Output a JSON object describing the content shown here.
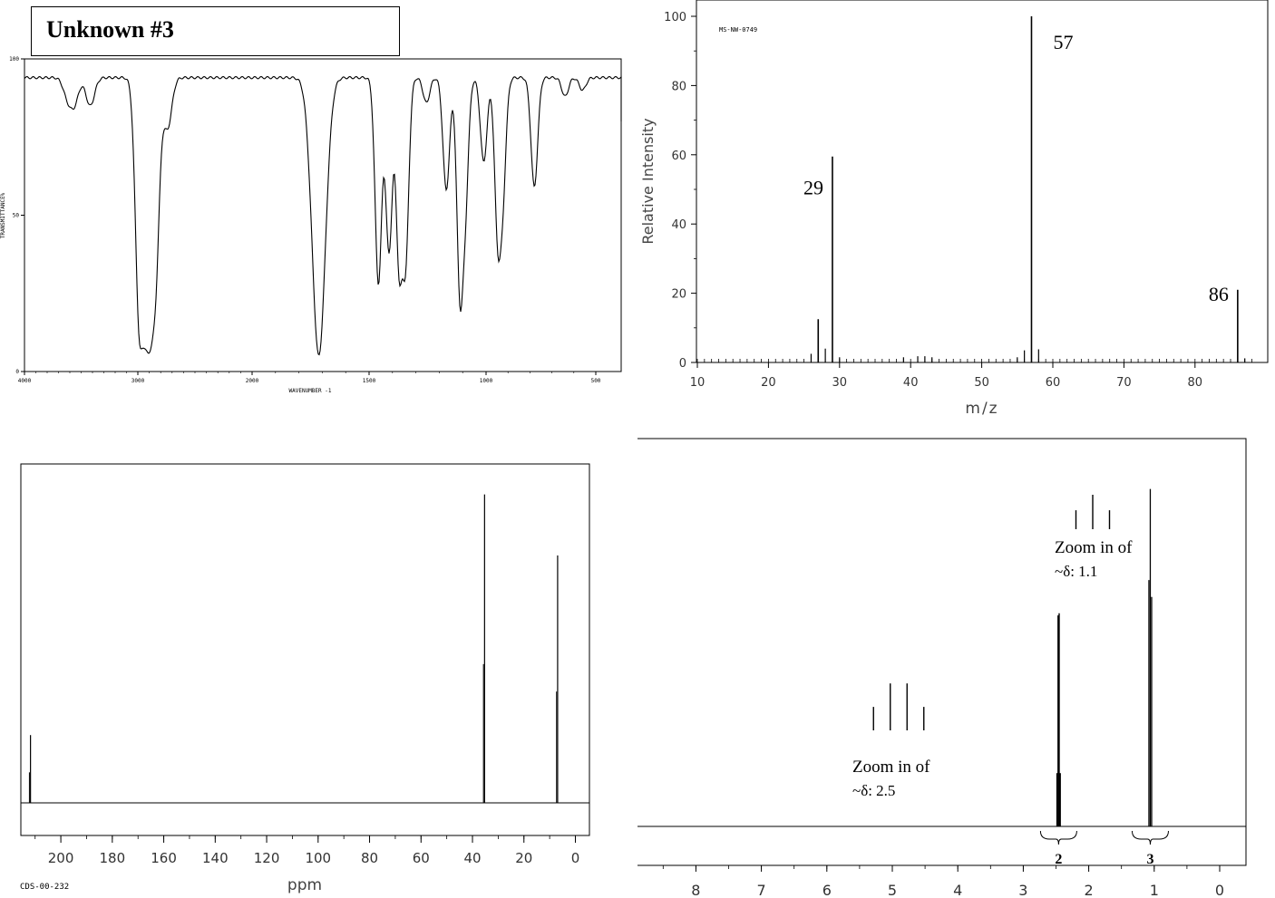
{
  "title": "Unknown #3",
  "colors": {
    "line": "#000000",
    "background": "#ffffff"
  },
  "chart_data": [
    {
      "id": "ir",
      "type": "line",
      "title": "",
      "xlabel": "WAVENUMBER -1",
      "ylabel": "TRANSMITTANCE%",
      "xlim": [
        4000,
        450
      ],
      "ylim": [
        0,
        100
      ],
      "x_ticks": [
        "4000",
        "3000",
        "2000",
        "1500",
        "1000",
        "500"
      ],
      "y_ticks": [
        "100",
        "50",
        "0"
      ],
      "baseline": 94,
      "bands": [
        {
          "x": 3620,
          "y": 88
        },
        {
          "x": 3560,
          "y": 86
        },
        {
          "x": 3420,
          "y": 85
        },
        {
          "x": 2980,
          "y": 14
        },
        {
          "x": 2945,
          "y": 39
        },
        {
          "x": 2910,
          "y": 22
        },
        {
          "x": 2880,
          "y": 38
        },
        {
          "x": 2850,
          "y": 41
        },
        {
          "x": 2740,
          "y": 78
        },
        {
          "x": 1715,
          "y": 5
        },
        {
          "x": 1460,
          "y": 28
        },
        {
          "x": 1415,
          "y": 38
        },
        {
          "x": 1370,
          "y": 32
        },
        {
          "x": 1345,
          "y": 35
        },
        {
          "x": 1255,
          "y": 86
        },
        {
          "x": 1170,
          "y": 58
        },
        {
          "x": 1110,
          "y": 23
        },
        {
          "x": 1090,
          "y": 57
        },
        {
          "x": 1010,
          "y": 67
        },
        {
          "x": 945,
          "y": 43
        },
        {
          "x": 925,
          "y": 60
        },
        {
          "x": 780,
          "y": 59
        },
        {
          "x": 640,
          "y": 88
        },
        {
          "x": 560,
          "y": 90
        }
      ]
    },
    {
      "id": "ms",
      "type": "bar",
      "title": "",
      "annotation": "MS-NW-0749",
      "xlabel": "m/z",
      "ylabel": "Relative Intensity",
      "xlim": [
        10,
        88
      ],
      "ylim": [
        0,
        100
      ],
      "x_ticks": [
        "10",
        "20",
        "30",
        "40",
        "50",
        "60",
        "70",
        "80"
      ],
      "y_ticks": [
        "0",
        "20",
        "40",
        "60",
        "80",
        "100"
      ],
      "peaks": [
        {
          "x": 26,
          "y": 2.5
        },
        {
          "x": 27,
          "y": 12.5
        },
        {
          "x": 28,
          "y": 4
        },
        {
          "x": 29,
          "y": 59.5
        },
        {
          "x": 30,
          "y": 1.5
        },
        {
          "x": 39,
          "y": 1.5
        },
        {
          "x": 41,
          "y": 1.8
        },
        {
          "x": 42,
          "y": 1.8
        },
        {
          "x": 43,
          "y": 1.5
        },
        {
          "x": 55,
          "y": 1.5
        },
        {
          "x": 56,
          "y": 3.5
        },
        {
          "x": 57,
          "y": 100
        },
        {
          "x": 58,
          "y": 3.8
        },
        {
          "x": 86,
          "y": 21
        },
        {
          "x": 87,
          "y": 1.2
        }
      ],
      "labels": [
        {
          "text": "29",
          "x": 29
        },
        {
          "text": "57",
          "x": 57
        },
        {
          "text": "86",
          "x": 86
        }
      ]
    },
    {
      "id": "c13",
      "type": "bar",
      "title": "",
      "annotation": "CDS-00-232",
      "xlabel": "ppm",
      "xlim": [
        220,
        -5
      ],
      "x_ticks": [
        "200",
        "180",
        "160",
        "140",
        "120",
        "100",
        "80",
        "60",
        "40",
        "20",
        "0"
      ],
      "peaks": [
        {
          "x": 211.8,
          "y": 0.2
        },
        {
          "x": 35.3,
          "y": 0.91
        },
        {
          "x": 6.9,
          "y": 0.73
        }
      ]
    },
    {
      "id": "h1",
      "type": "bar",
      "title": "",
      "xlabel": "",
      "xlim": [
        8.9,
        -0.4
      ],
      "x_ticks": [
        "8",
        "7",
        "6",
        "5",
        "4",
        "3",
        "2",
        "1",
        "0"
      ],
      "peaks": [
        {
          "x": 2.46,
          "y": 0.6
        },
        {
          "x": 1.06,
          "y": 0.95
        }
      ],
      "integrations": [
        {
          "text": "2",
          "x": 2.46
        },
        {
          "text": "3",
          "x": 1.06
        }
      ],
      "zooms": [
        {
          "line1": "Zoom in of",
          "line2": "~δ: 2.5",
          "heights": [
            0.35,
            0.7,
            0.7,
            0.35
          ]
        },
        {
          "line1": "Zoom in of",
          "line2": "~δ: 1.1",
          "heights": [
            0.55,
            1.0,
            0.55
          ]
        }
      ]
    }
  ]
}
